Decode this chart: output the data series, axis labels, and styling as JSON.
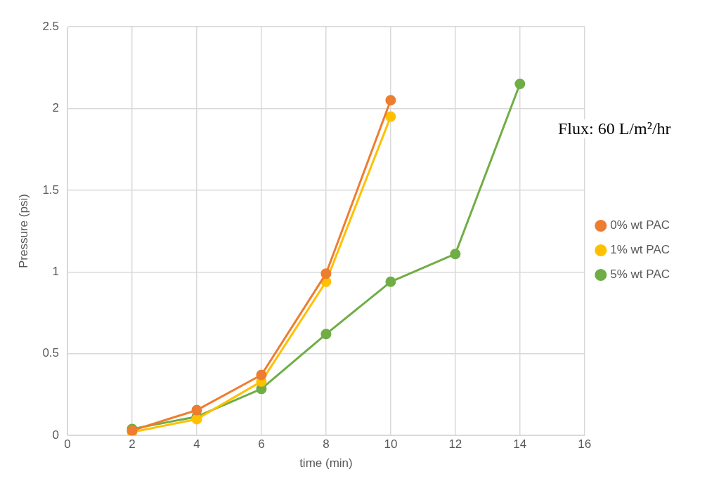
{
  "chart_data": {
    "type": "line",
    "xlabel": "time (min)",
    "ylabel": "Pressure (psi)",
    "annotations": [
      "Flux: 60 L/m²/hr"
    ],
    "xlim": [
      0,
      16
    ],
    "xticks": [
      0,
      2,
      4,
      6,
      8,
      10,
      12,
      14,
      16
    ],
    "ylim": [
      0,
      2.5
    ],
    "yticks": [
      0,
      0.5,
      1,
      1.5,
      2,
      2.5
    ],
    "grid": true,
    "legend": "right",
    "marker": "circle",
    "line_style": "solid",
    "series": [
      {
        "name": "0% wt PAC",
        "color": "#ed7d31",
        "x": [
          2,
          4,
          6,
          8,
          10
        ],
        "values": [
          0.03,
          0.155,
          0.37,
          0.99,
          2.05
        ]
      },
      {
        "name": "1% wt PAC",
        "color": "#ffc000",
        "x": [
          2,
          4,
          6,
          8,
          10
        ],
        "values": [
          0.02,
          0.1,
          0.33,
          0.94,
          1.95
        ]
      },
      {
        "name": "5% wt PAC",
        "color": "#70ad47",
        "x": [
          2,
          4,
          6,
          8,
          10,
          12,
          14
        ],
        "values": [
          0.04,
          0.115,
          0.285,
          0.62,
          0.94,
          1.11,
          2.15
        ]
      }
    ]
  }
}
